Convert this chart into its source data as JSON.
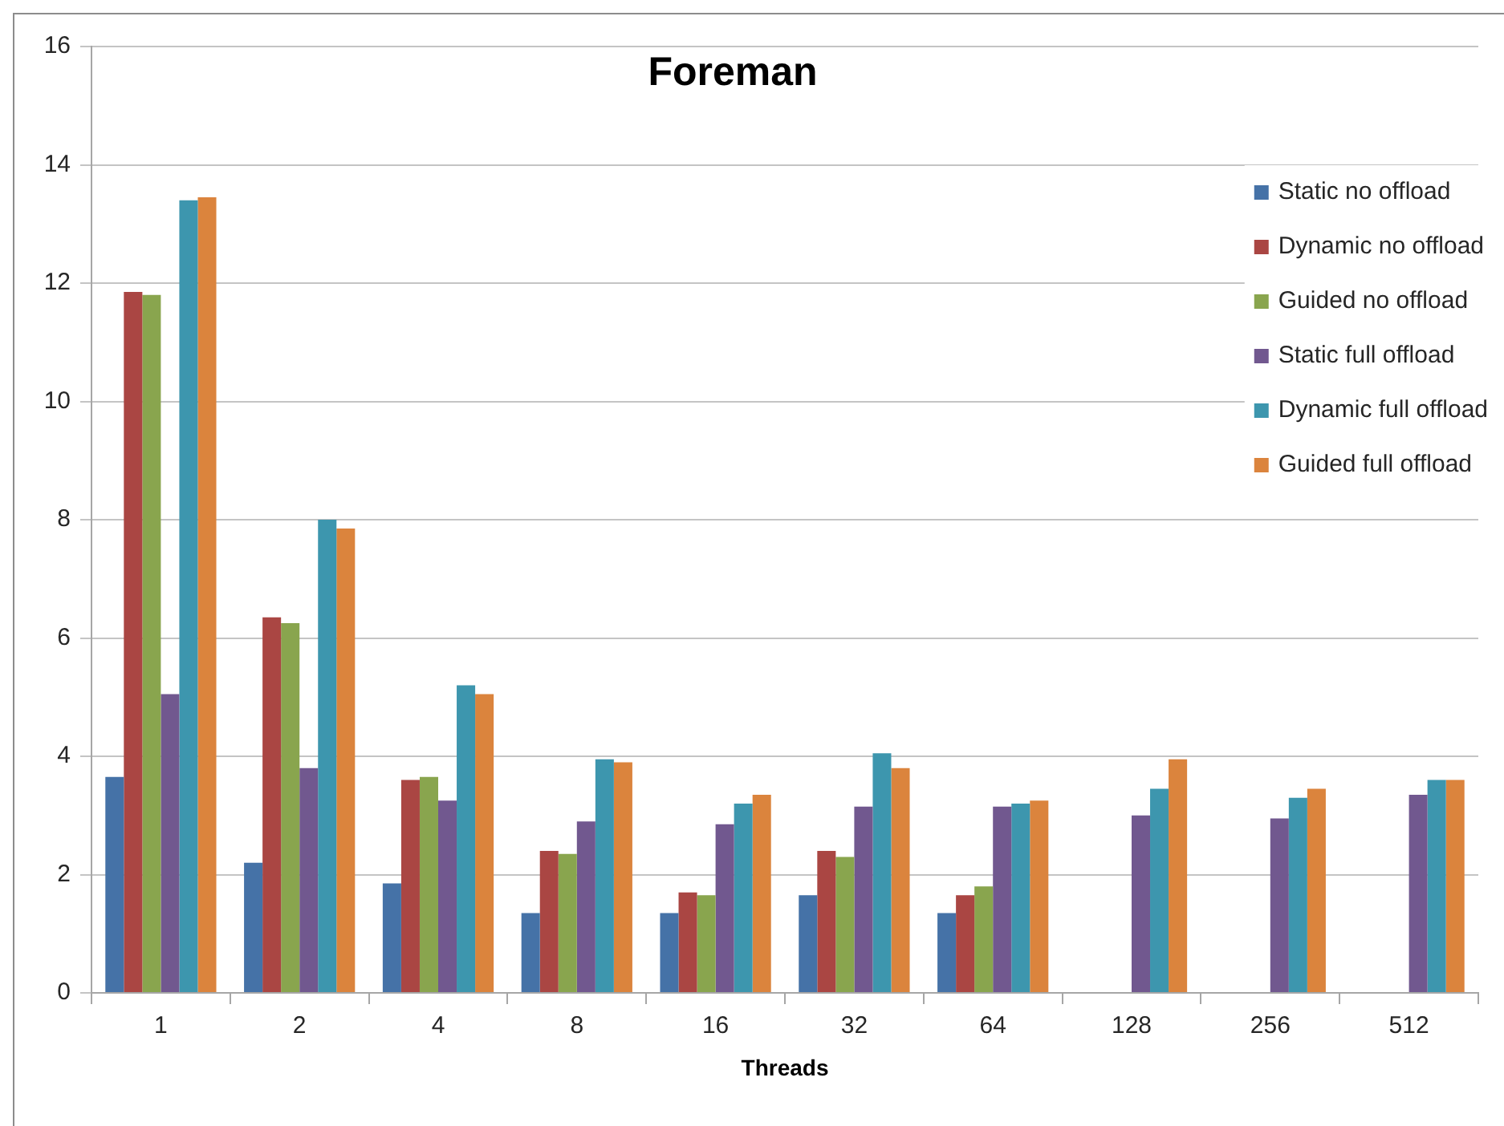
{
  "chart_data": {
    "type": "bar",
    "title": "Foreman",
    "xlabel": "Threads",
    "categories": [
      "1",
      "2",
      "4",
      "8",
      "16",
      "32",
      "64",
      "128",
      "256",
      "512"
    ],
    "series": [
      {
        "name": "Static no offload",
        "color": "#4572a7",
        "values": [
          3.65,
          2.2,
          1.85,
          1.35,
          1.35,
          1.65,
          1.35,
          null,
          null,
          null
        ]
      },
      {
        "name": "Dynamic no offload",
        "color": "#aa4643",
        "values": [
          11.85,
          6.35,
          3.6,
          2.4,
          1.7,
          2.4,
          1.65,
          null,
          null,
          null
        ]
      },
      {
        "name": "Guided no offload",
        "color": "#89a54e",
        "values": [
          11.8,
          6.25,
          3.65,
          2.35,
          1.65,
          2.3,
          1.8,
          null,
          null,
          null
        ]
      },
      {
        "name": "Static full offload",
        "color": "#71588f",
        "values": [
          5.05,
          3.8,
          3.25,
          2.9,
          2.85,
          3.15,
          3.15,
          3.0,
          2.95,
          3.35
        ]
      },
      {
        "name": "Dynamic full offload",
        "color": "#3d96ae",
        "values": [
          13.4,
          8.0,
          5.2,
          3.95,
          3.2,
          4.05,
          3.2,
          3.45,
          3.3,
          3.6
        ]
      },
      {
        "name": "Guided full offload",
        "color": "#db843d",
        "values": [
          13.45,
          7.85,
          5.05,
          3.9,
          3.35,
          3.8,
          3.25,
          3.95,
          3.45,
          3.6
        ]
      }
    ],
    "ylim": [
      0,
      16
    ],
    "yticks": [
      0,
      2,
      4,
      6,
      8,
      10,
      12,
      14,
      16
    ],
    "grid": "y",
    "legend": "top right"
  }
}
